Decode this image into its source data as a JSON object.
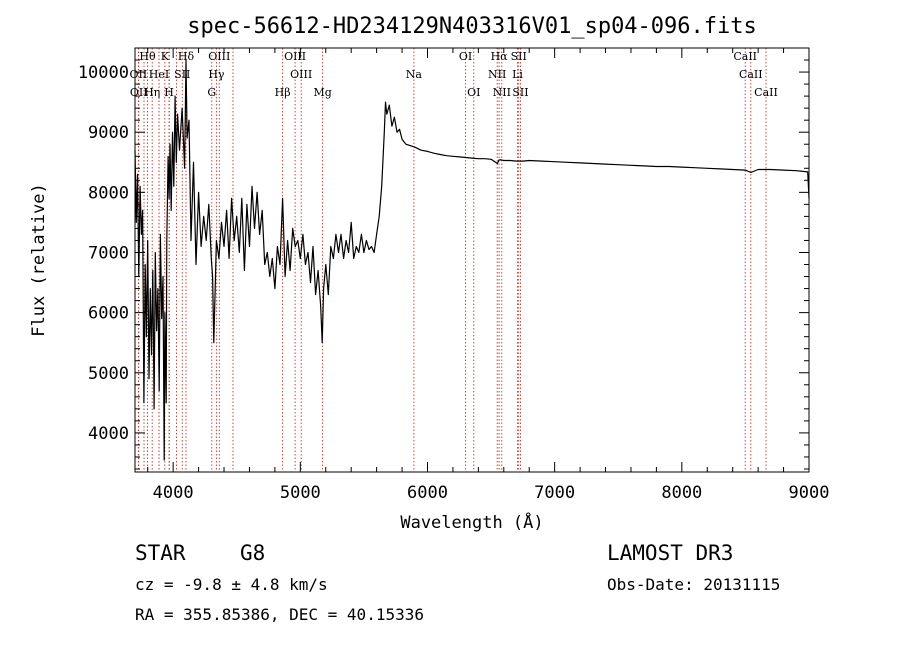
{
  "chart_data": {
    "type": "line",
    "title": "spec-56612-HD234129N403316V01_sp04-096.fits",
    "xlabel": "Wavelength (Å)",
    "ylabel": "Flux (relative)",
    "xlim": [
      3700,
      9000
    ],
    "ylim": [
      3350,
      10400
    ],
    "x_ticks": [
      4000,
      5000,
      6000,
      7000,
      8000,
      9000
    ],
    "y_ticks": [
      4000,
      5000,
      6000,
      7000,
      8000,
      9000,
      10000
    ],
    "series": [
      {
        "name": "spectrum",
        "x": [
          3700,
          3710,
          3720,
          3730,
          3740,
          3750,
          3760,
          3770,
          3780,
          3790,
          3800,
          3810,
          3820,
          3830,
          3840,
          3850,
          3860,
          3870,
          3880,
          3890,
          3900,
          3910,
          3920,
          3930,
          3935,
          3945,
          3950,
          3960,
          3968,
          3975,
          3985,
          3995,
          4005,
          4015,
          4025,
          4035,
          4050,
          4070,
          4090,
          4101,
          4110,
          4125,
          4140,
          4160,
          4180,
          4200,
          4220,
          4240,
          4260,
          4280,
          4300,
          4310,
          4320,
          4340,
          4360,
          4380,
          4400,
          4420,
          4440,
          4460,
          4480,
          4500,
          4520,
          4540,
          4560,
          4580,
          4600,
          4620,
          4640,
          4660,
          4680,
          4700,
          4720,
          4740,
          4760,
          4780,
          4800,
          4820,
          4840,
          4861,
          4880,
          4900,
          4920,
          4940,
          4960,
          4980,
          5000,
          5020,
          5040,
          5060,
          5080,
          5100,
          5120,
          5140,
          5160,
          5172,
          5183,
          5200,
          5220,
          5240,
          5260,
          5280,
          5300,
          5320,
          5340,
          5360,
          5380,
          5400,
          5420,
          5440,
          5460,
          5480,
          5500,
          5520,
          5540,
          5560,
          5580,
          5600,
          5620,
          5640,
          5660,
          5670,
          5680,
          5700,
          5720,
          5740,
          5760,
          5780,
          5800,
          5830,
          5860,
          5900,
          5950,
          6000,
          6050,
          6100,
          6150,
          6200,
          6250,
          6300,
          6350,
          6400,
          6450,
          6500,
          6550,
          6563,
          6580,
          6600,
          6650,
          6700,
          6750,
          6800,
          6900,
          7000,
          7100,
          7200,
          7300,
          7400,
          7500,
          7600,
          7700,
          7800,
          7900,
          8000,
          8100,
          8200,
          8300,
          8400,
          8500,
          8542,
          8600,
          8700,
          8800,
          8900,
          8990,
          9000
        ],
        "y": [
          8700,
          7500,
          8300,
          6600,
          8100,
          7300,
          7700,
          4500,
          6800,
          5600,
          7200,
          4900,
          6400,
          5300,
          6700,
          4400,
          7000,
          5700,
          6400,
          4700,
          7300,
          5900,
          6600,
          3550,
          6000,
          4500,
          7200,
          8600,
          7900,
          8800,
          7700,
          9000,
          8100,
          9600,
          8500,
          9300,
          8700,
          9400,
          8400,
          10200,
          8900,
          9200,
          7200,
          8500,
          6800,
          8000,
          7100,
          7600,
          7200,
          7800,
          6900,
          6600,
          5500,
          7200,
          6900,
          7500,
          7100,
          7700,
          6900,
          7900,
          7200,
          7600,
          7000,
          7900,
          6700,
          7800,
          7100,
          8100,
          7400,
          8000,
          7300,
          7700,
          6800,
          7000,
          6600,
          6900,
          6400,
          7100,
          6800,
          7900,
          6600,
          7200,
          6700,
          7400,
          7100,
          7200,
          6900,
          7300,
          6800,
          7000,
          6500,
          7100,
          6300,
          6700,
          6100,
          5500,
          6400,
          6800,
          6300,
          7100,
          6900,
          7300,
          7000,
          7300,
          6900,
          7200,
          7000,
          7500,
          6900,
          7100,
          7000,
          7300,
          7000,
          7200,
          7050,
          7100,
          7000,
          7300,
          7600,
          8100,
          9000,
          9500,
          9300,
          9450,
          9100,
          9250,
          9000,
          9050,
          8880,
          8800,
          8780,
          8750,
          8700,
          8680,
          8650,
          8630,
          8610,
          8600,
          8590,
          8580,
          8570,
          8560,
          8560,
          8550,
          8480,
          8540,
          8540,
          8530,
          8530,
          8520,
          8520,
          8530,
          8520,
          8510,
          8500,
          8490,
          8480,
          8470,
          8460,
          8450,
          8440,
          8430,
          8430,
          8420,
          8410,
          8400,
          8390,
          8380,
          8370,
          8330,
          8380,
          8380,
          8370,
          8360,
          8340,
          7900
        ]
      }
    ],
    "spectral_lines": [
      {
        "label": "Hθ",
        "x": 3798,
        "row": 0
      },
      {
        "label": "K",
        "x": 3934,
        "row": 0
      },
      {
        "label": "Hδ",
        "x": 4101,
        "row": 0
      },
      {
        "label": "OIII",
        "x": 4363,
        "row": 0
      },
      {
        "label": "OIII",
        "x": 4959,
        "row": 0
      },
      {
        "label": "OI",
        "x": 6300,
        "row": 0
      },
      {
        "label": "Hα",
        "x": 6563,
        "row": 0
      },
      {
        "label": "SII",
        "x": 6717,
        "row": 0
      },
      {
        "label": "CaII",
        "x": 8498,
        "row": 0
      },
      {
        "label": "OII",
        "x": 3727,
        "row": 1
      },
      {
        "label": "HeI",
        "x": 3889,
        "row": 1
      },
      {
        "label": "SII",
        "x": 4072,
        "row": 1
      },
      {
        "label": "Hγ",
        "x": 4340,
        "row": 1
      },
      {
        "label": "OIII",
        "x": 5007,
        "row": 1
      },
      {
        "label": "Na",
        "x": 5893,
        "row": 1
      },
      {
        "label": "NII",
        "x": 6548,
        "row": 1
      },
      {
        "label": "Li",
        "x": 6708,
        "row": 1
      },
      {
        "label": "CaII",
        "x": 8542,
        "row": 1
      },
      {
        "label": "OII",
        "x": 3729,
        "row": 2
      },
      {
        "label": "Hη",
        "x": 3835,
        "row": 2
      },
      {
        "label": "H",
        "x": 3968,
        "row": 2
      },
      {
        "label": "G",
        "x": 4304,
        "row": 2
      },
      {
        "label": "Hβ",
        "x": 4861,
        "row": 2
      },
      {
        "label": "Mg",
        "x": 5175,
        "row": 2
      },
      {
        "label": "OI",
        "x": 6364,
        "row": 2
      },
      {
        "label": "NII",
        "x": 6584,
        "row": 2
      },
      {
        "label": "SII",
        "x": 6731,
        "row": 2
      },
      {
        "label": "CaII",
        "x": 8662,
        "row": 2
      }
    ],
    "extra_line_marks": [
      3771,
      3889,
      3970,
      4026,
      4471
    ]
  },
  "info": {
    "object_class": "STAR",
    "subclass": "G8",
    "survey": "LAMOST DR3",
    "cz": "cz = -9.8 ± 4.8 km/s",
    "obs_date": "Obs-Date: 20131115",
    "coords": "RA = 355.85386, DEC =  40.15336"
  }
}
